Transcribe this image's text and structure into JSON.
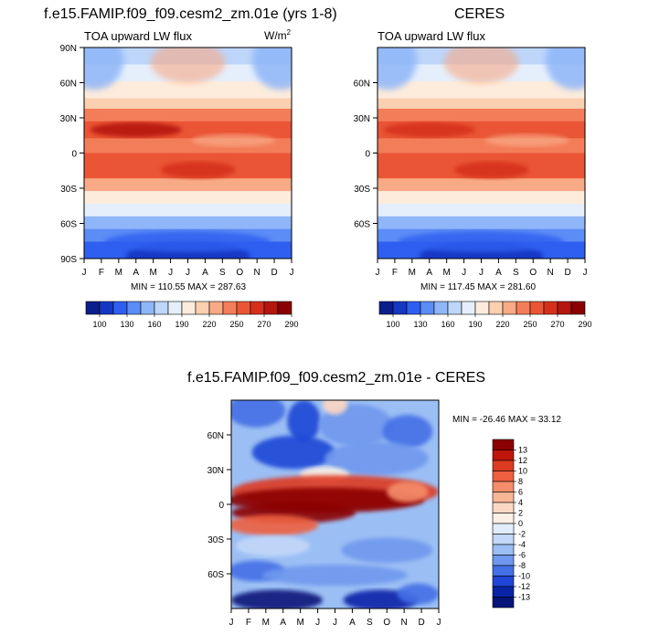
{
  "panels": {
    "left_title": "f.e15.FAMIP.f09_f09.cesm2_zm.01e (yrs 1-8)",
    "right_title": "CERES",
    "bottom_title": "f.e15.FAMIP.f09_f09.cesm2_zm.01e - CERES",
    "left_subtitle": "TOA upward LW flux",
    "right_subtitle": "TOA upward LW flux",
    "units_base": "W/m",
    "units_exp": "2",
    "left_minmax": "MIN = 110.55 MAX = 287.63",
    "right_minmax": "MIN = 117.45 MAX = 281.60",
    "bottom_minmax": "MIN = -26.46 MAX =  33.12"
  },
  "chart_data": [
    {
      "type": "heatmap",
      "title": "f.e15.FAMIP.f09_f09.cesm2_zm.01e (yrs 1-8)",
      "subtitle": "TOA upward LW flux",
      "units": "W/m2",
      "x_ticks": [
        "J",
        "F",
        "M",
        "A",
        "M",
        "J",
        "J",
        "A",
        "S",
        "O",
        "N",
        "D",
        "J"
      ],
      "y_ticks": [
        "90N",
        "60N",
        "30N",
        "0",
        "30S",
        "60S",
        "90S"
      ],
      "y_values": [
        90,
        60,
        30,
        0,
        -30,
        -60,
        -90
      ],
      "ylim": [
        -90,
        90
      ],
      "min": 110.55,
      "max": 287.63,
      "colorbar_labels": [
        "100",
        "130",
        "160",
        "190",
        "220",
        "250",
        "270",
        "290"
      ]
    },
    {
      "type": "heatmap",
      "title": "CERES",
      "subtitle": "TOA upward LW flux",
      "units": "W/m2",
      "x_ticks": [
        "J",
        "F",
        "M",
        "A",
        "M",
        "J",
        "J",
        "A",
        "S",
        "O",
        "N",
        "D",
        "J"
      ],
      "y_ticks": [
        "60N",
        "30N",
        "0",
        "30S",
        "60S"
      ],
      "y_values": [
        60,
        30,
        0,
        -30,
        -60
      ],
      "ylim": [
        -90,
        90
      ],
      "min": 117.45,
      "max": 281.6,
      "colorbar_labels": [
        "100",
        "130",
        "160",
        "190",
        "220",
        "250",
        "270",
        "290"
      ]
    },
    {
      "type": "heatmap",
      "title": "f.e15.FAMIP.f09_f09.cesm2_zm.01e - CERES",
      "x_ticks": [
        "J",
        "F",
        "M",
        "A",
        "M",
        "J",
        "J",
        "A",
        "S",
        "O",
        "N",
        "D",
        "J"
      ],
      "y_ticks": [
        "60N",
        "30N",
        "0",
        "30S",
        "60S"
      ],
      "y_values": [
        60,
        30,
        0,
        -30,
        -60
      ],
      "ylim": [
        -90,
        90
      ],
      "min": -26.46,
      "max": 33.12,
      "colorbar_labels": [
        "13",
        "12",
        "10",
        "8",
        "6",
        "4",
        "2",
        "0",
        "-2",
        "-4",
        "-6",
        "-8",
        "-10",
        "-12",
        "-13"
      ]
    }
  ],
  "colors": {
    "seq": [
      "#0a1e8c",
      "#1537c4",
      "#2f5ff0",
      "#5c8cf5",
      "#8fb6f8",
      "#bdd6fa",
      "#e5effc",
      "#fdecdc",
      "#fbd0b0",
      "#f8a985",
      "#f47d59",
      "#ea5535",
      "#d6301c",
      "#b5160e",
      "#8b0000"
    ],
    "div": [
      "#8b0000",
      "#c0150c",
      "#de3a20",
      "#ef6040",
      "#f58d6b",
      "#f9b697",
      "#fcd8c4",
      "#fcefe4",
      "#e2edfc",
      "#c3d8f8",
      "#9bbef4",
      "#6f98ee",
      "#4470e6",
      "#1f46d6",
      "#0a24a8",
      "#071578"
    ]
  }
}
